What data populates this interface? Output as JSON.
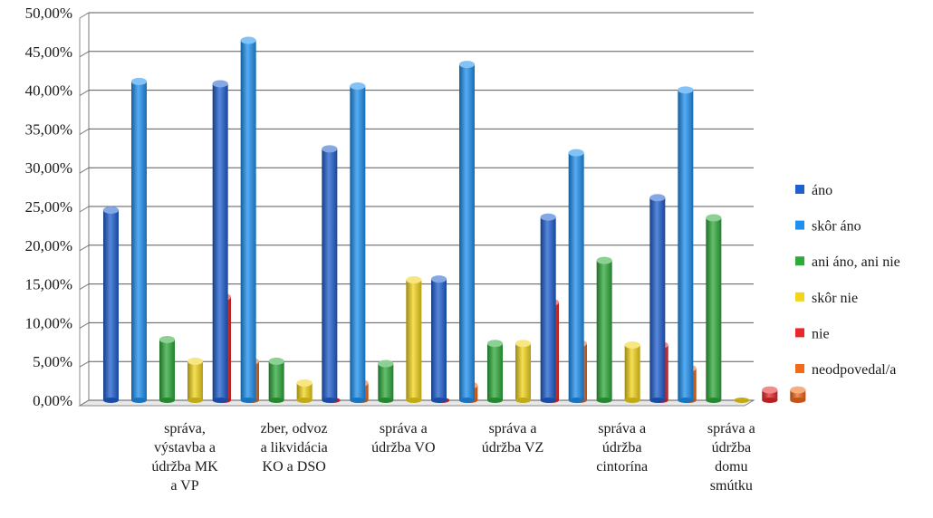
{
  "chart_data": {
    "type": "bar",
    "title": "",
    "xlabel": "",
    "ylabel": "",
    "ylim": [
      0,
      50
    ],
    "grid": true,
    "legend": "right",
    "y_ticks": [
      "0,00%",
      "5,00%",
      "10,00%",
      "15,00%",
      "20,00%",
      "25,00%",
      "30,00%",
      "35,00%",
      "40,00%",
      "45,00%",
      "50,00%"
    ],
    "categories": [
      [
        "správa,",
        "výstavba a",
        "údržba MK",
        "a VP"
      ],
      [
        "zber, odvoz",
        "a likvidácia",
        "KO a DSO"
      ],
      [
        "správa a",
        "údržba VO"
      ],
      [
        "správa a",
        "údržba VZ"
      ],
      [
        "správa a",
        "údržba",
        "cintorína"
      ],
      [
        "správa a",
        "údržba",
        "domu",
        "smútku"
      ]
    ],
    "series": [
      {
        "name": "áno",
        "color": "#1f5fd0",
        "values": [
          25.0,
          41.3,
          32.9,
          16.1,
          24.1,
          26.6
        ]
      },
      {
        "name": "skôr áno",
        "color": "#1e90f0",
        "values": [
          41.6,
          46.9,
          41.0,
          43.8,
          32.4,
          40.5
        ]
      },
      {
        "name": "ani áno, ani nie",
        "color": "#2eaa3a",
        "values": [
          8.3,
          5.5,
          5.2,
          7.8,
          18.5,
          24.0
        ]
      },
      {
        "name": "skôr nie",
        "color": "#f2d41a",
        "values": [
          5.5,
          2.7,
          16.0,
          7.8,
          7.6,
          0.0
        ]
      },
      {
        "name": "nie",
        "color": "#e8282a",
        "values": [
          13.8,
          0.0,
          0.0,
          13.1,
          7.6,
          1.8
        ]
      },
      {
        "name": "neodpovedal/a",
        "color": "#f06a1a",
        "values": [
          5.5,
          2.7,
          2.4,
          7.8,
          4.6,
          1.8
        ]
      }
    ]
  }
}
